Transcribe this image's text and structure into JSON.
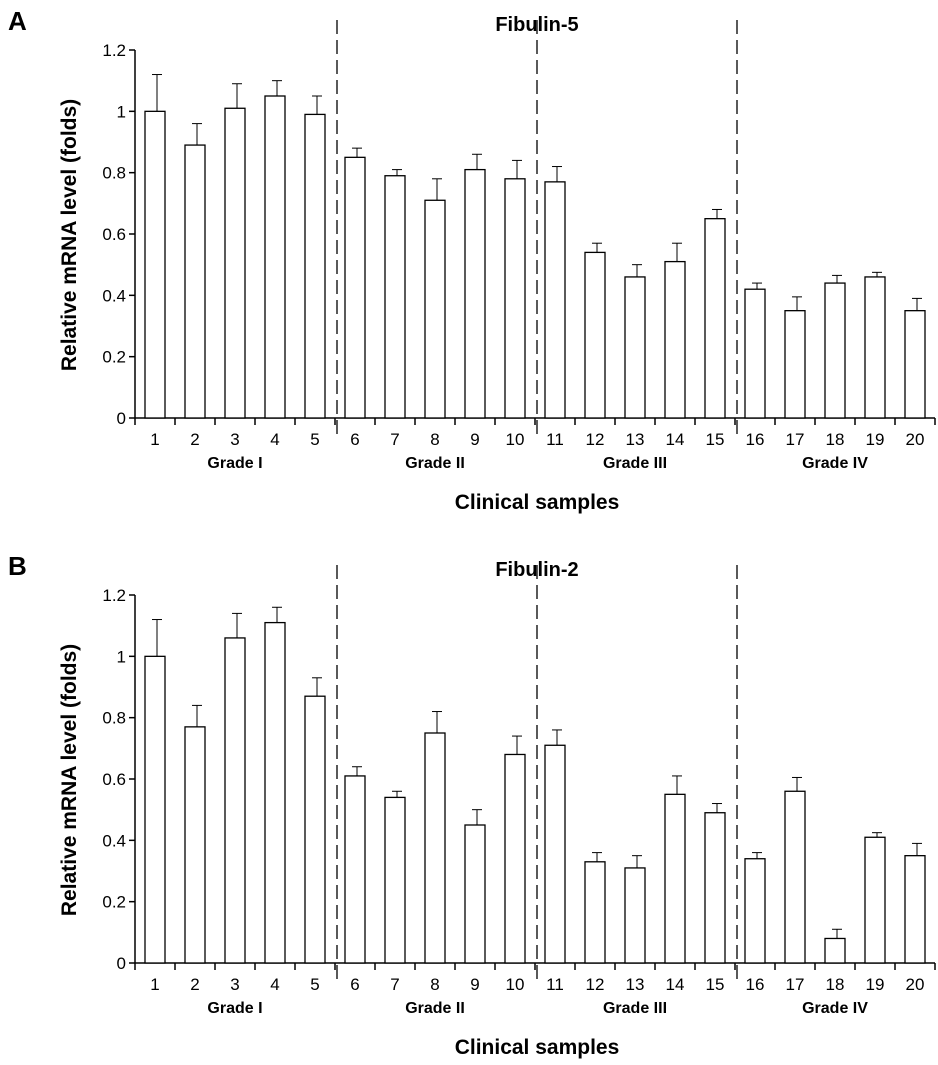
{
  "chart_data": [
    {
      "type": "bar",
      "panel": "A",
      "title": "Fibulin-5",
      "xlabel": "Clinical samples",
      "ylabel": "Relative mRNA level (folds)",
      "ylim": [
        0,
        1.2
      ],
      "yticks": [
        "0",
        "0.2",
        "0.4",
        "0.6",
        "0.8",
        "1",
        "1.2"
      ],
      "categories": [
        "1",
        "2",
        "3",
        "4",
        "5",
        "6",
        "7",
        "8",
        "9",
        "10",
        "11",
        "12",
        "13",
        "14",
        "15",
        "16",
        "17",
        "18",
        "19",
        "20"
      ],
      "values": [
        1.0,
        0.89,
        1.01,
        1.05,
        0.99,
        0.85,
        0.79,
        0.71,
        0.81,
        0.78,
        0.77,
        0.54,
        0.46,
        0.51,
        0.65,
        0.42,
        0.35,
        0.44,
        0.46,
        0.35
      ],
      "errors": [
        0.12,
        0.07,
        0.08,
        0.05,
        0.06,
        0.03,
        0.02,
        0.07,
        0.05,
        0.06,
        0.05,
        0.03,
        0.04,
        0.06,
        0.03,
        0.02,
        0.045,
        0.025,
        0.015,
        0.04
      ],
      "groups": [
        {
          "label": "Grade I",
          "samples": [
            1,
            5
          ]
        },
        {
          "label": "Grade II",
          "samples": [
            6,
            10
          ]
        },
        {
          "label": "Grade III",
          "samples": [
            11,
            15
          ]
        },
        {
          "label": "Grade IV",
          "samples": [
            16,
            20
          ]
        }
      ],
      "grid": false
    },
    {
      "type": "bar",
      "panel": "B",
      "title": "Fibulin-2",
      "xlabel": "Clinical samples",
      "ylabel": "Relative mRNA level (folds)",
      "ylim": [
        0,
        1.2
      ],
      "yticks": [
        "0",
        "0.2",
        "0.4",
        "0.6",
        "0.8",
        "1",
        "1.2"
      ],
      "categories": [
        "1",
        "2",
        "3",
        "4",
        "5",
        "6",
        "7",
        "8",
        "9",
        "10",
        "11",
        "12",
        "13",
        "14",
        "15",
        "16",
        "17",
        "18",
        "19",
        "20"
      ],
      "values": [
        1.0,
        0.77,
        1.06,
        1.11,
        0.87,
        0.61,
        0.54,
        0.75,
        0.45,
        0.68,
        0.71,
        0.33,
        0.31,
        0.55,
        0.49,
        0.34,
        0.56,
        0.08,
        0.41,
        0.35
      ],
      "errors": [
        0.12,
        0.07,
        0.08,
        0.05,
        0.06,
        0.03,
        0.02,
        0.07,
        0.05,
        0.06,
        0.05,
        0.03,
        0.04,
        0.06,
        0.03,
        0.02,
        0.045,
        0.03,
        0.015,
        0.04
      ],
      "groups": [
        {
          "label": "Grade I",
          "samples": [
            1,
            5
          ]
        },
        {
          "label": "Grade II",
          "samples": [
            6,
            10
          ]
        },
        {
          "label": "Grade III",
          "samples": [
            11,
            15
          ]
        },
        {
          "label": "Grade IV",
          "samples": [
            16,
            20
          ]
        }
      ],
      "grid": false
    }
  ]
}
